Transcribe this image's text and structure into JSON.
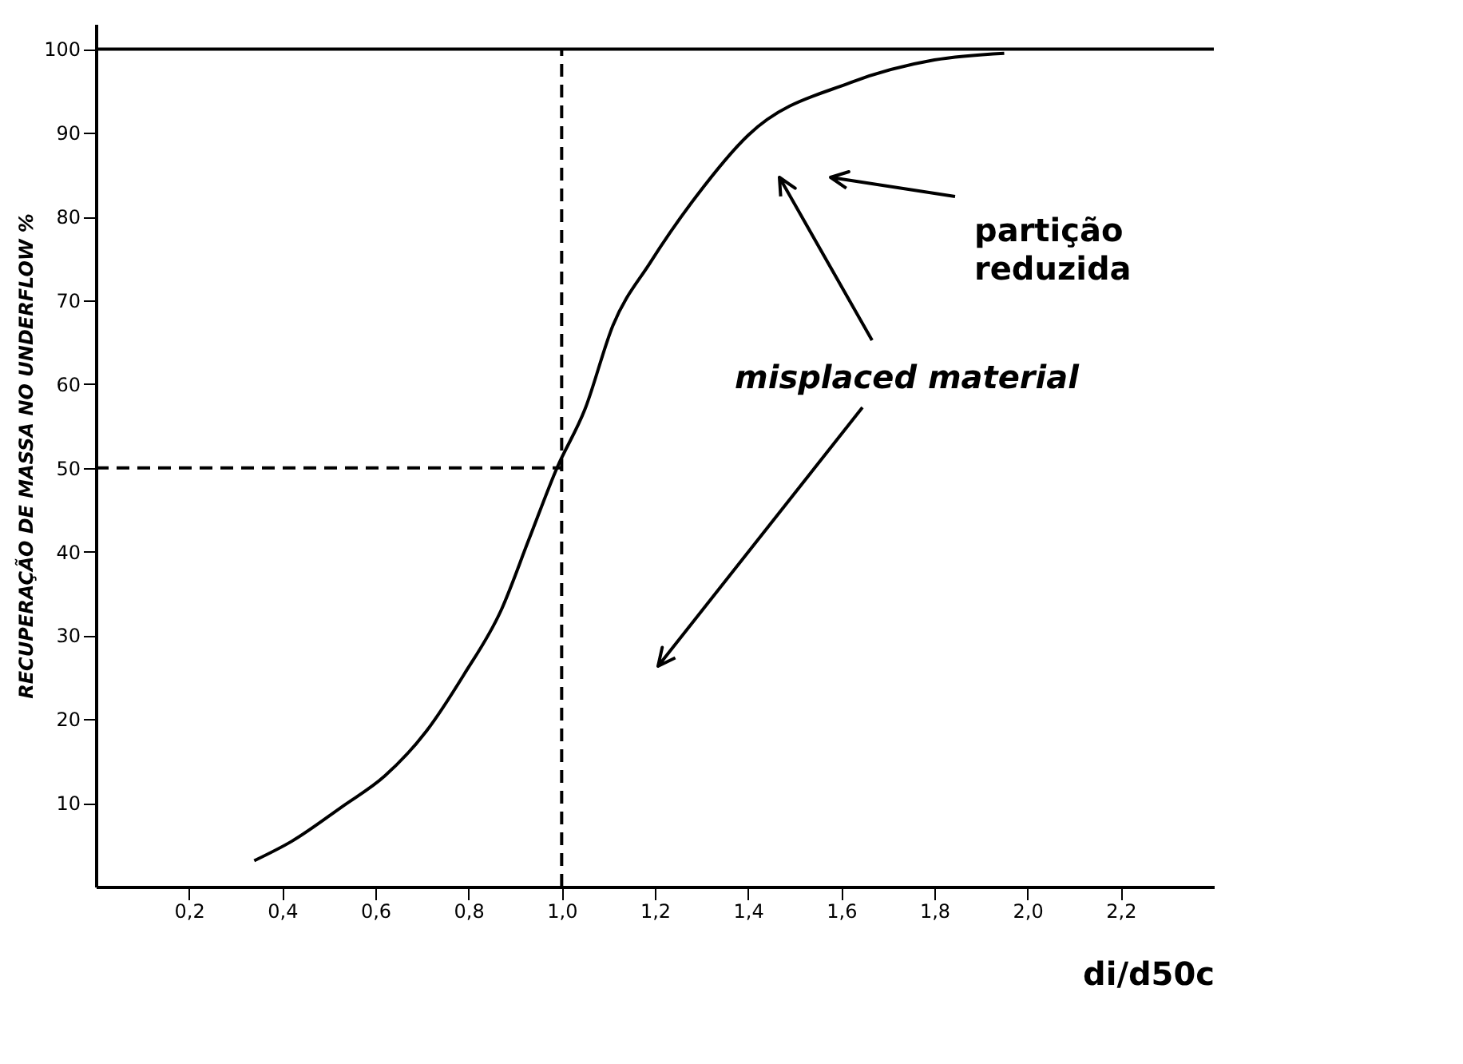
{
  "chart_data": {
    "type": "line",
    "xlabel": "di/d50c",
    "ylabel": "RECUPERAÇÃO DE MASSA NO UNDERFLOW %",
    "xlim": [
      0,
      2.4
    ],
    "ylim": [
      0,
      103
    ],
    "xticks": [
      {
        "value": 0.2,
        "label": "0,2"
      },
      {
        "value": 0.4,
        "label": "0,4"
      },
      {
        "value": 0.6,
        "label": "0,6"
      },
      {
        "value": 0.8,
        "label": "0,8"
      },
      {
        "value": 1.0,
        "label": "1,0"
      },
      {
        "value": 1.2,
        "label": "1,2"
      },
      {
        "value": 1.4,
        "label": "1,4"
      },
      {
        "value": 1.6,
        "label": "1,6"
      },
      {
        "value": 1.8,
        "label": "1,8"
      },
      {
        "value": 2.0,
        "label": "2,0"
      },
      {
        "value": 2.2,
        "label": "2,2"
      }
    ],
    "yticks": [
      10,
      20,
      30,
      40,
      50,
      60,
      70,
      80,
      90,
      100
    ],
    "grid": false,
    "marker": "none",
    "series": [
      {
        "color": "#000000",
        "line_style": "solid",
        "x": [
          0.34,
          0.42,
          0.53,
          0.62,
          0.71,
          0.79,
          0.87,
          0.93,
          0.99,
          1.05,
          1.11,
          1.19,
          1.29,
          1.4,
          1.62,
          1.8,
          1.95
        ],
        "values": [
          3.1,
          5.4,
          9.6,
          13.2,
          18.6,
          25.3,
          33,
          41.5,
          50,
          57,
          67,
          74.5,
          82.5,
          89.7,
          96,
          98.7,
          99.5
        ]
      },
      {
        "color": "#000000",
        "line_style": "dashed",
        "x": [
          0,
          1.0
        ],
        "values": [
          50,
          50
        ]
      },
      {
        "color": "#000000",
        "line_style": "dashed",
        "x": [
          1.0,
          1.0
        ],
        "values": [
          0,
          100
        ]
      }
    ],
    "ref_lines": [
      {
        "axis": "y",
        "value": 100,
        "color": "#000000",
        "line_style": "solid"
      }
    ],
    "annotations": [
      "partição reduzida",
      "misplaced material"
    ]
  }
}
